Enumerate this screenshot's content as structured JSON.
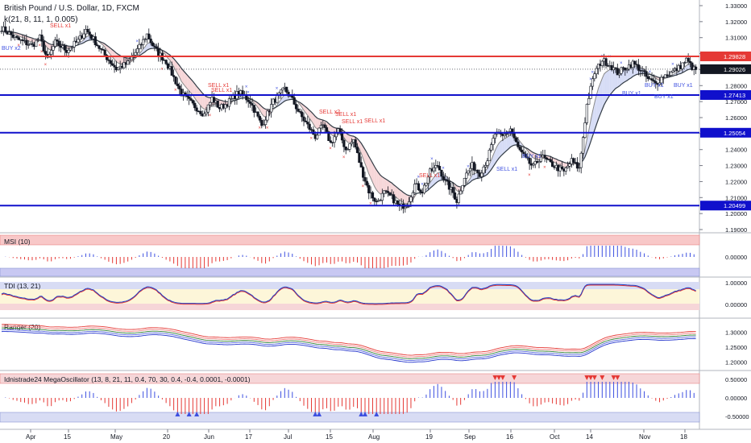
{
  "chart_data": [
    {
      "pane": "main",
      "type": "candlestick",
      "title": "British Pound / U.S. Dollar, 1D, FXCM",
      "subtitle": "k(21, 8, 11, 1, 0.005)",
      "ylim": [
        1.19,
        1.33
      ],
      "y_ticks": [
        "1.33000",
        "1.32000",
        "1.31000",
        "1.30000",
        "1.29000",
        "1.28000",
        "1.27000",
        "1.26000",
        "1.25000",
        "1.24000",
        "1.23000",
        "1.22000",
        "1.21000",
        "1.20000",
        "1.19000"
      ],
      "x_ticks": [
        "Apr",
        "15",
        "May",
        "20",
        "Jun",
        "17",
        "Jul",
        "15",
        "Aug",
        "19",
        "Sep",
        "16",
        "Oct",
        "14",
        "Nov",
        "18"
      ],
      "last_price": "1.29026",
      "levels": [
        {
          "value": 1.29828,
          "label": "1.29828",
          "color": "#e53935"
        },
        {
          "value": 1.27413,
          "label": "1.27413",
          "color": "#1010cc"
        },
        {
          "value": 1.25054,
          "label": "1.25054",
          "color": "#1010cc"
        },
        {
          "value": 1.20499,
          "label": "1.20499",
          "color": "#1010cc"
        }
      ],
      "close_path": [
        [
          0,
          1.316
        ],
        [
          8,
          1.309
        ],
        [
          16,
          1.305
        ],
        [
          20,
          1.31
        ],
        [
          24,
          1.296
        ],
        [
          28,
          1.307
        ],
        [
          34,
          1.302
        ],
        [
          40,
          1.308
        ],
        [
          44,
          1.315
        ],
        [
          48,
          1.309
        ],
        [
          52,
          1.302
        ],
        [
          56,
          1.296
        ],
        [
          60,
          1.2905
        ],
        [
          66,
          1.294
        ],
        [
          72,
          1.304
        ],
        [
          76,
          1.312
        ],
        [
          80,
          1.303
        ],
        [
          86,
          1.295
        ],
        [
          90,
          1.285
        ],
        [
          94,
          1.275
        ],
        [
          100,
          1.268
        ],
        [
          106,
          1.262
        ],
        [
          110,
          1.272
        ],
        [
          114,
          1.266
        ],
        [
          118,
          1.269
        ],
        [
          124,
          1.276
        ],
        [
          130,
          1.27
        ],
        [
          136,
          1.255
        ],
        [
          142,
          1.27
        ],
        [
          148,
          1.278
        ],
        [
          152,
          1.271
        ],
        [
          156,
          1.262
        ],
        [
          160,
          1.255
        ],
        [
          164,
          1.248
        ],
        [
          168,
          1.255
        ],
        [
          172,
          1.244
        ],
        [
          176,
          1.252
        ],
        [
          180,
          1.24
        ],
        [
          184,
          1.246
        ],
        [
          188,
          1.228
        ],
        [
          192,
          1.214
        ],
        [
          196,
          1.207
        ],
        [
          200,
          1.213
        ],
        [
          204,
          1.21
        ],
        [
          208,
          1.204
        ],
        [
          212,
          1.206
        ],
        [
          216,
          1.218
        ],
        [
          220,
          1.214
        ],
        [
          224,
          1.226
        ],
        [
          228,
          1.23
        ],
        [
          232,
          1.22
        ],
        [
          236,
          1.213
        ],
        [
          238,
          1.208
        ],
        [
          242,
          1.223
        ],
        [
          246,
          1.23
        ],
        [
          250,
          1.225
        ],
        [
          254,
          1.234
        ],
        [
          258,
          1.25
        ],
        [
          262,
          1.248
        ],
        [
          266,
          1.253
        ],
        [
          270,
          1.241
        ],
        [
          274,
          1.234
        ],
        [
          278,
          1.229
        ],
        [
          282,
          1.236
        ],
        [
          286,
          1.232
        ],
        [
          290,
          1.229
        ],
        [
          294,
          1.226
        ],
        [
          298,
          1.233
        ],
        [
          302,
          1.228
        ],
        [
          306,
          1.268
        ],
        [
          310,
          1.288
        ],
        [
          314,
          1.296
        ],
        [
          318,
          1.293
        ],
        [
          322,
          1.288
        ],
        [
          326,
          1.291
        ],
        [
          330,
          1.294
        ],
        [
          334,
          1.29
        ],
        [
          338,
          1.284
        ],
        [
          342,
          1.281
        ],
        [
          346,
          1.286
        ],
        [
          350,
          1.288
        ],
        [
          354,
          1.291
        ],
        [
          358,
          1.296
        ],
        [
          360,
          1.293
        ],
        [
          362,
          1.29
        ]
      ],
      "signals": [
        "BUY x2",
        "SELL x1",
        "SELL x1",
        "SELL x1",
        "SELL x2",
        "SELL x1",
        "SELL x1",
        "SELL x1",
        "SELL x1",
        "SELL x1",
        "BUY x1",
        "BUY x1",
        "BUY x1",
        "BUY x1",
        "BUY x1"
      ]
    },
    {
      "pane": "MSI",
      "type": "histogram",
      "title": "MSI (10)",
      "y_ticks": [
        "0.00000"
      ],
      "band_colors": {
        "upper": "#f8c8c8",
        "lower": "#c8c8f2"
      }
    },
    {
      "pane": "TDI",
      "type": "line",
      "title": "TDI (13, 21)",
      "y_ticks": [
        "1.00000",
        "0.00000"
      ],
      "series_colors": [
        "#e53935",
        "#1e40c8"
      ]
    },
    {
      "pane": "Ranger",
      "type": "line",
      "title": "Ranger (20)",
      "y_ticks": [
        "1.30000",
        "1.25000",
        "1.20000"
      ],
      "band_colors": [
        "#e53935",
        "#ef7b7b",
        "#2e7d32",
        "#5566dd",
        "#2233cc"
      ]
    },
    {
      "pane": "MegaOscillator",
      "type": "histogram",
      "title": "Idnistrade24 MegaOscillator (13, 8, 21, 11, 0.4, 70, 30, 0.4, -0.4, 0.0001, -0.0001)",
      "y_ticks": [
        "0.50000",
        "0.00000",
        "-0.50000"
      ]
    }
  ]
}
